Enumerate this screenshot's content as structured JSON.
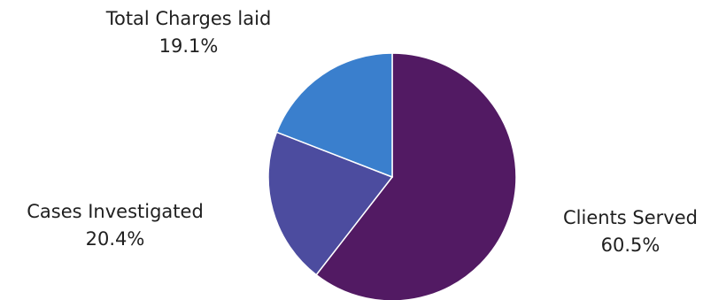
{
  "chart_data": {
    "type": "pie",
    "title": "",
    "start_angle_deg": 0,
    "direction": "clockwise",
    "slices": [
      {
        "label": "Clients Served",
        "value": 60.5,
        "value_label": "60.5%",
        "color": "#521a63"
      },
      {
        "label": "Cases Investigated",
        "value": 20.4,
        "value_label": "20.4%",
        "color": "#4c4c9f"
      },
      {
        "label": "Total Charges laid",
        "value": 19.1,
        "value_label": "19.1%",
        "color": "#3a7fcd"
      }
    ],
    "legend": "none"
  }
}
